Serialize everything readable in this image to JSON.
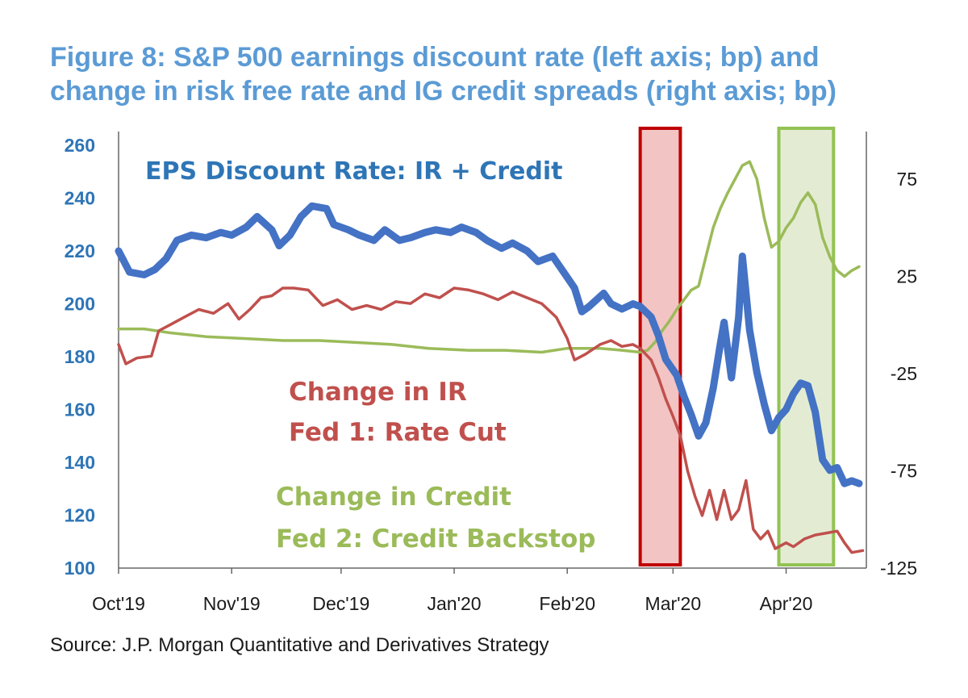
{
  "title_lines": [
    "Figure 8: S&P 500 earnings discount rate (left axis; bp) and",
    "change in risk free rate and IG credit spreads (right axis; bp)"
  ],
  "source": "Source: J.P. Morgan Quantitative and Derivatives Strategy",
  "colors": {
    "title": "#5b9bd5",
    "eps": "#4472c4",
    "ir": "#c0504d",
    "credit": "#9bbb59",
    "left_ticks": "#2e75b6",
    "fed1_fill": "#f2c4c4",
    "fed1_border": "#c00000",
    "fed2_fill": "#e3ecd3",
    "fed2_border": "#92c353"
  },
  "chart_data": {
    "type": "line",
    "title": "Figure 8: S&P 500 earnings discount rate (left axis; bp) and change in risk free rate and IG credit spreads (right axis; bp)",
    "x_range": [
      "2019-10-01",
      "2020-04-23"
    ],
    "x_ticks": [
      {
        "date": "2019-10-01",
        "label": "Oct'19"
      },
      {
        "date": "2019-11-01",
        "label": "Nov'19"
      },
      {
        "date": "2019-12-01",
        "label": "Dec'19"
      },
      {
        "date": "2020-01-01",
        "label": "Jan'20"
      },
      {
        "date": "2020-02-01",
        "label": "Feb'20"
      },
      {
        "date": "2020-03-01",
        "label": "Mar'20"
      },
      {
        "date": "2020-04-01",
        "label": "Apr'20"
      }
    ],
    "y_left": {
      "min": 100,
      "max": 260,
      "ticks": [
        100,
        120,
        140,
        160,
        180,
        200,
        220,
        240,
        260
      ]
    },
    "y_right": {
      "min": -125,
      "max": 100,
      "ticks": [
        -125,
        -75,
        -25,
        25,
        75
      ]
    },
    "grid": false,
    "annotations": [
      {
        "text": "EPS Discount Rate: IR + Credit",
        "series": "eps"
      },
      {
        "text": "Change in IR",
        "series": "ir"
      },
      {
        "text": "Fed 1: Rate Cut",
        "series": "ir"
      },
      {
        "text": "Change in Credit",
        "series": "credit"
      },
      {
        "text": "Fed 2: Credit Backstop",
        "series": "credit"
      }
    ],
    "shaded_regions": [
      {
        "name": "Fed 1: Rate Cut",
        "x_start": "2020-02-21",
        "x_end": "2020-03-03",
        "color": "fed1"
      },
      {
        "name": "Fed 2: Credit Backstop",
        "x_start": "2020-03-30",
        "x_end": "2020-04-14",
        "color": "fed2"
      }
    ],
    "series": [
      {
        "key": "eps",
        "axis": "left",
        "points": [
          [
            "2019-10-01",
            220
          ],
          [
            "2019-10-04",
            212
          ],
          [
            "2019-10-08",
            211
          ],
          [
            "2019-10-11",
            213
          ],
          [
            "2019-10-14",
            217
          ],
          [
            "2019-10-17",
            224
          ],
          [
            "2019-10-21",
            226
          ],
          [
            "2019-10-25",
            225
          ],
          [
            "2019-10-29",
            227
          ],
          [
            "2019-11-01",
            226
          ],
          [
            "2019-11-05",
            229
          ],
          [
            "2019-11-08",
            233
          ],
          [
            "2019-11-12",
            228
          ],
          [
            "2019-11-14",
            222
          ],
          [
            "2019-11-17",
            226
          ],
          [
            "2019-11-20",
            233
          ],
          [
            "2019-11-23",
            237
          ],
          [
            "2019-11-27",
            236
          ],
          [
            "2019-11-29",
            230
          ],
          [
            "2019-12-03",
            228
          ],
          [
            "2019-12-06",
            226
          ],
          [
            "2019-12-10",
            224
          ],
          [
            "2019-12-13",
            228
          ],
          [
            "2019-12-17",
            224
          ],
          [
            "2019-12-20",
            225
          ],
          [
            "2019-12-24",
            227
          ],
          [
            "2019-12-27",
            228
          ],
          [
            "2019-12-31",
            227
          ],
          [
            "2020-01-03",
            229
          ],
          [
            "2020-01-07",
            227
          ],
          [
            "2020-01-10",
            224
          ],
          [
            "2020-01-14",
            221
          ],
          [
            "2020-01-17",
            223
          ],
          [
            "2020-01-21",
            220
          ],
          [
            "2020-01-24",
            216
          ],
          [
            "2020-01-28",
            218
          ],
          [
            "2020-01-31",
            212
          ],
          [
            "2020-02-03",
            206
          ],
          [
            "2020-02-05",
            197
          ],
          [
            "2020-02-07",
            199
          ],
          [
            "2020-02-11",
            204
          ],
          [
            "2020-02-13",
            200
          ],
          [
            "2020-02-16",
            198
          ],
          [
            "2020-02-19",
            200
          ],
          [
            "2020-02-21",
            199
          ],
          [
            "2020-02-24",
            195
          ],
          [
            "2020-02-26",
            188
          ],
          [
            "2020-02-28",
            179
          ],
          [
            "2020-03-02",
            173
          ],
          [
            "2020-03-04",
            165
          ],
          [
            "2020-03-06",
            158
          ],
          [
            "2020-03-08",
            150
          ],
          [
            "2020-03-10",
            155
          ],
          [
            "2020-03-12",
            168
          ],
          [
            "2020-03-14",
            185
          ],
          [
            "2020-03-15",
            193
          ],
          [
            "2020-03-17",
            172
          ],
          [
            "2020-03-19",
            195
          ],
          [
            "2020-03-20",
            218
          ],
          [
            "2020-03-22",
            190
          ],
          [
            "2020-03-24",
            174
          ],
          [
            "2020-03-26",
            162
          ],
          [
            "2020-03-28",
            152
          ],
          [
            "2020-03-30",
            157
          ],
          [
            "2020-04-01",
            160
          ],
          [
            "2020-04-03",
            166
          ],
          [
            "2020-04-05",
            170
          ],
          [
            "2020-04-07",
            169
          ],
          [
            "2020-04-09",
            159
          ],
          [
            "2020-04-11",
            141
          ],
          [
            "2020-04-13",
            137
          ],
          [
            "2020-04-15",
            138
          ],
          [
            "2020-04-17",
            132
          ],
          [
            "2020-04-19",
            133
          ],
          [
            "2020-04-21",
            132
          ]
        ]
      },
      {
        "key": "ir",
        "axis": "right",
        "points": [
          [
            "2019-10-01",
            -10
          ],
          [
            "2019-10-03",
            -20
          ],
          [
            "2019-10-06",
            -17
          ],
          [
            "2019-10-10",
            -16
          ],
          [
            "2019-10-12",
            -3
          ],
          [
            "2019-10-15",
            0
          ],
          [
            "2019-10-19",
            4
          ],
          [
            "2019-10-23",
            8
          ],
          [
            "2019-10-27",
            6
          ],
          [
            "2019-10-31",
            11
          ],
          [
            "2019-11-03",
            3
          ],
          [
            "2019-11-06",
            8
          ],
          [
            "2019-11-09",
            14
          ],
          [
            "2019-11-12",
            15
          ],
          [
            "2019-11-15",
            19
          ],
          [
            "2019-11-18",
            19
          ],
          [
            "2019-11-22",
            18
          ],
          [
            "2019-11-26",
            10
          ],
          [
            "2019-11-30",
            13
          ],
          [
            "2019-12-04",
            8
          ],
          [
            "2019-12-08",
            10
          ],
          [
            "2019-12-12",
            8
          ],
          [
            "2019-12-16",
            12
          ],
          [
            "2019-12-20",
            11
          ],
          [
            "2019-12-24",
            16
          ],
          [
            "2019-12-28",
            14
          ],
          [
            "2020-01-01",
            19
          ],
          [
            "2020-01-05",
            18
          ],
          [
            "2020-01-09",
            16
          ],
          [
            "2020-01-13",
            13
          ],
          [
            "2020-01-17",
            17
          ],
          [
            "2020-01-21",
            14
          ],
          [
            "2020-01-25",
            11
          ],
          [
            "2020-01-29",
            4
          ],
          [
            "2020-02-01",
            -7
          ],
          [
            "2020-02-03",
            -18
          ],
          [
            "2020-02-06",
            -15
          ],
          [
            "2020-02-10",
            -10
          ],
          [
            "2020-02-13",
            -8
          ],
          [
            "2020-02-16",
            -11
          ],
          [
            "2020-02-19",
            -10
          ],
          [
            "2020-02-21",
            -12
          ],
          [
            "2020-02-24",
            -18
          ],
          [
            "2020-02-26",
            -27
          ],
          [
            "2020-02-28",
            -38
          ],
          [
            "2020-03-01",
            -47
          ],
          [
            "2020-03-03",
            -57
          ],
          [
            "2020-03-05",
            -75
          ],
          [
            "2020-03-07",
            -88
          ],
          [
            "2020-03-09",
            -98
          ],
          [
            "2020-03-11",
            -85
          ],
          [
            "2020-03-13",
            -100
          ],
          [
            "2020-03-15",
            -85
          ],
          [
            "2020-03-17",
            -100
          ],
          [
            "2020-03-19",
            -95
          ],
          [
            "2020-03-21",
            -80
          ],
          [
            "2020-03-23",
            -105
          ],
          [
            "2020-03-25",
            -110
          ],
          [
            "2020-03-27",
            -106
          ],
          [
            "2020-03-29",
            -115
          ],
          [
            "2020-04-01",
            -112
          ],
          [
            "2020-04-03",
            -114
          ],
          [
            "2020-04-06",
            -110
          ],
          [
            "2020-04-09",
            -108
          ],
          [
            "2020-04-12",
            -107
          ],
          [
            "2020-04-15",
            -106
          ],
          [
            "2020-04-17",
            -112
          ],
          [
            "2020-04-19",
            -117
          ],
          [
            "2020-04-22",
            -116
          ]
        ]
      },
      {
        "key": "credit",
        "axis": "right",
        "points": [
          [
            "2019-10-01",
            -2
          ],
          [
            "2019-10-08",
            -2
          ],
          [
            "2019-10-15",
            -4
          ],
          [
            "2019-10-25",
            -6
          ],
          [
            "2019-11-05",
            -7
          ],
          [
            "2019-11-15",
            -8
          ],
          [
            "2019-11-25",
            -8
          ],
          [
            "2019-12-05",
            -9
          ],
          [
            "2019-12-15",
            -10
          ],
          [
            "2019-12-25",
            -12
          ],
          [
            "2020-01-05",
            -13
          ],
          [
            "2020-01-15",
            -13
          ],
          [
            "2020-01-25",
            -14
          ],
          [
            "2020-02-01",
            -12
          ],
          [
            "2020-02-10",
            -12
          ],
          [
            "2020-02-16",
            -13
          ],
          [
            "2020-02-21",
            -14
          ],
          [
            "2020-02-23",
            -13
          ],
          [
            "2020-02-25",
            -9
          ],
          [
            "2020-02-27",
            -3
          ],
          [
            "2020-02-29",
            2
          ],
          [
            "2020-03-02",
            8
          ],
          [
            "2020-03-04",
            13
          ],
          [
            "2020-03-06",
            18
          ],
          [
            "2020-03-08",
            20
          ],
          [
            "2020-03-10",
            35
          ],
          [
            "2020-03-12",
            50
          ],
          [
            "2020-03-14",
            60
          ],
          [
            "2020-03-16",
            68
          ],
          [
            "2020-03-18",
            75
          ],
          [
            "2020-03-20",
            82
          ],
          [
            "2020-03-22",
            84
          ],
          [
            "2020-03-24",
            75
          ],
          [
            "2020-03-26",
            55
          ],
          [
            "2020-03-28",
            40
          ],
          [
            "2020-03-30",
            43
          ],
          [
            "2020-04-01",
            50
          ],
          [
            "2020-04-03",
            55
          ],
          [
            "2020-04-05",
            63
          ],
          [
            "2020-04-07",
            68
          ],
          [
            "2020-04-09",
            62
          ],
          [
            "2020-04-11",
            45
          ],
          [
            "2020-04-13",
            35
          ],
          [
            "2020-04-15",
            28
          ],
          [
            "2020-04-17",
            25
          ],
          [
            "2020-04-19",
            28
          ],
          [
            "2020-04-21",
            30
          ]
        ]
      }
    ]
  }
}
